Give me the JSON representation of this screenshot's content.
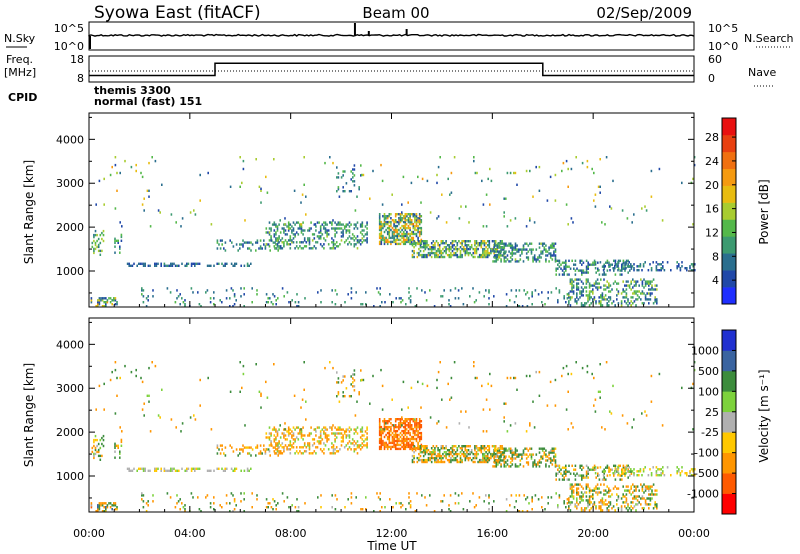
{
  "header": {
    "title": "Syowa East (fitACF)",
    "beam": "Beam 00",
    "date": "02/Sep/2009"
  },
  "nsky_panel": {
    "left_label": "N.Sky",
    "right_label": "N.Search",
    "left_ticks": [
      "10^5",
      "10^0"
    ],
    "right_ticks": [
      "10^5",
      "10^0"
    ]
  },
  "freq_panel": {
    "left_label_1": "Freq.",
    "left_label_2": "[MHz]",
    "right_label": "Nave",
    "left_ticks": [
      "18",
      "8"
    ],
    "right_ticks": [
      "60",
      "0"
    ],
    "freq_steps": [
      {
        "start_h": 0,
        "end_h": 5,
        "mhz": 10.5
      },
      {
        "start_h": 5,
        "end_h": 18,
        "mhz": 15.2
      },
      {
        "start_h": 18,
        "end_h": 24,
        "mhz": 10.5
      }
    ]
  },
  "cpid": {
    "label": "CPID",
    "line1": "themis 3300",
    "line2": "normal (fast) 151"
  },
  "power_scale": {
    "label": "Power [dB]",
    "ticks": [
      "4",
      "8",
      "12",
      "16",
      "20",
      "24",
      "28"
    ],
    "colors": [
      "#1f2fff",
      "#2048a8",
      "#2a6e8e",
      "#3c9a70",
      "#54b84a",
      "#a8cc30",
      "#e8bc10",
      "#f59a10",
      "#f07010",
      "#e84010",
      "#e81010"
    ]
  },
  "velocity_scale": {
    "label": "Velocity [m s⁻¹]",
    "ticks": [
      "-1000",
      "-500",
      "-100",
      "-25",
      "25",
      "100",
      "500",
      "1000"
    ],
    "colors": [
      "#ff0000",
      "#ff5a00",
      "#ff9600",
      "#ffc800",
      "#b0b0b0",
      "#7dd23c",
      "#3c8c3c",
      "#3a64a0",
      "#2030d0"
    ]
  },
  "chart_data": {
    "type": "heatmap",
    "xlabel": "Time UT",
    "x_ticks": [
      "00:00",
      "04:00",
      "08:00",
      "12:00",
      "16:00",
      "20:00",
      "00:00"
    ],
    "xlim_hours": [
      0,
      24
    ],
    "ylabel": "Slant Range [km]",
    "y_ticks": [
      1000,
      2000,
      3000,
      4000
    ],
    "ylim_km": [
      180,
      4600
    ],
    "features": [
      {
        "t0": 0.0,
        "t1": 1.1,
        "r0": 180,
        "r1": 380,
        "density": 0.45,
        "power": [
          3,
          20
        ],
        "velocity": [
          -600,
          600
        ]
      },
      {
        "t0": 0.1,
        "t1": 0.6,
        "r0": 1350,
        "r1": 1900,
        "density": 0.35,
        "power": [
          6,
          16
        ],
        "velocity": [
          -200,
          300
        ]
      },
      {
        "t0": 1.0,
        "t1": 1.3,
        "r0": 1400,
        "r1": 1850,
        "density": 0.3,
        "power": [
          4,
          14
        ],
        "velocity": [
          -300,
          400
        ]
      },
      {
        "t0": 1.5,
        "t1": 6.4,
        "r0": 1100,
        "r1": 1180,
        "density": 0.45,
        "power": [
          3,
          10
        ],
        "velocity": [
          -50,
          50
        ]
      },
      {
        "t0": 5.0,
        "t1": 7.5,
        "r0": 1450,
        "r1": 1700,
        "density": 0.2,
        "power": [
          4,
          12
        ],
        "velocity": [
          -400,
          200
        ]
      },
      {
        "t0": 7.0,
        "t1": 11.0,
        "r0": 1500,
        "r1": 2100,
        "density": 0.35,
        "power": [
          4,
          14
        ],
        "velocity": [
          -400,
          100
        ]
      },
      {
        "t0": 9.8,
        "t1": 10.8,
        "r0": 2800,
        "r1": 3400,
        "density": 0.15,
        "power": [
          4,
          12
        ],
        "velocity": [
          -300,
          300
        ]
      },
      {
        "t0": 11.5,
        "t1": 13.2,
        "r0": 1600,
        "r1": 2300,
        "density": 0.65,
        "power": [
          4,
          22
        ],
        "velocity": [
          -900,
          -200
        ]
      },
      {
        "t0": 12.8,
        "t1": 16.5,
        "r0": 1300,
        "r1": 1700,
        "density": 0.55,
        "power": [
          4,
          18
        ],
        "velocity": [
          -500,
          400
        ]
      },
      {
        "t0": 16.0,
        "t1": 18.5,
        "r0": 1200,
        "r1": 1650,
        "density": 0.4,
        "power": [
          4,
          14
        ],
        "velocity": [
          -300,
          500
        ]
      },
      {
        "t0": 18.5,
        "t1": 21.5,
        "r0": 900,
        "r1": 1250,
        "density": 0.3,
        "power": [
          3,
          12
        ],
        "velocity": [
          -300,
          500
        ]
      },
      {
        "t0": 19.0,
        "t1": 22.5,
        "r0": 200,
        "r1": 800,
        "density": 0.35,
        "power": [
          3,
          16
        ],
        "velocity": [
          -400,
          300
        ]
      },
      {
        "t0": 20.0,
        "t1": 24.0,
        "r0": 1000,
        "r1": 1200,
        "density": 0.25,
        "power": [
          3,
          10
        ],
        "velocity": [
          -100,
          100
        ]
      },
      {
        "t0": 2.0,
        "t1": 19.0,
        "r0": 180,
        "r1": 600,
        "density": 0.06,
        "power": [
          3,
          12
        ],
        "velocity": [
          -500,
          500
        ]
      },
      {
        "t0": 0.0,
        "t1": 24.0,
        "r0": 2000,
        "r1": 3600,
        "density": 0.015,
        "power": [
          3,
          20
        ],
        "velocity": [
          -500,
          500
        ]
      }
    ]
  }
}
